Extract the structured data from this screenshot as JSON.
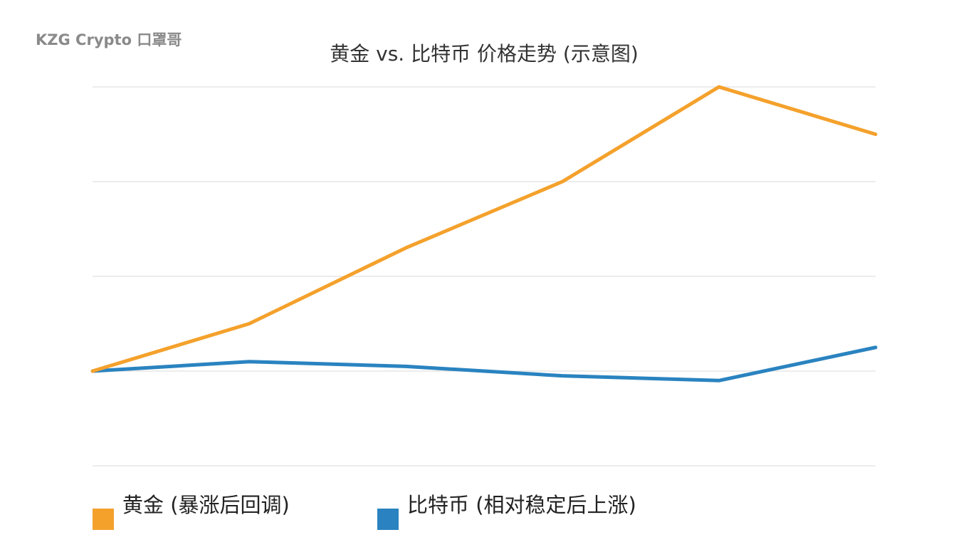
{
  "watermark": "KZG Crypto 口罩哥",
  "chart_data": {
    "type": "line",
    "title": "黄金 vs. 比特币 价格走势 (示意图)",
    "xlabel": "",
    "ylabel": "",
    "categories": [
      "",
      "",
      "",
      "",
      "",
      ""
    ],
    "ylim": [
      -1,
      3
    ],
    "grid": true,
    "legend_position": "bottom-left",
    "series": [
      {
        "name": "黄金 (暴涨后回调)",
        "color": "#F4A12C",
        "values": [
          0,
          0.5,
          1.3,
          2.0,
          3.0,
          2.5
        ]
      },
      {
        "name": "比特币 (相对稳定后上涨)",
        "color": "#2A83C0",
        "values": [
          0,
          0.1,
          0.05,
          -0.05,
          -0.1,
          0.25
        ]
      }
    ]
  }
}
